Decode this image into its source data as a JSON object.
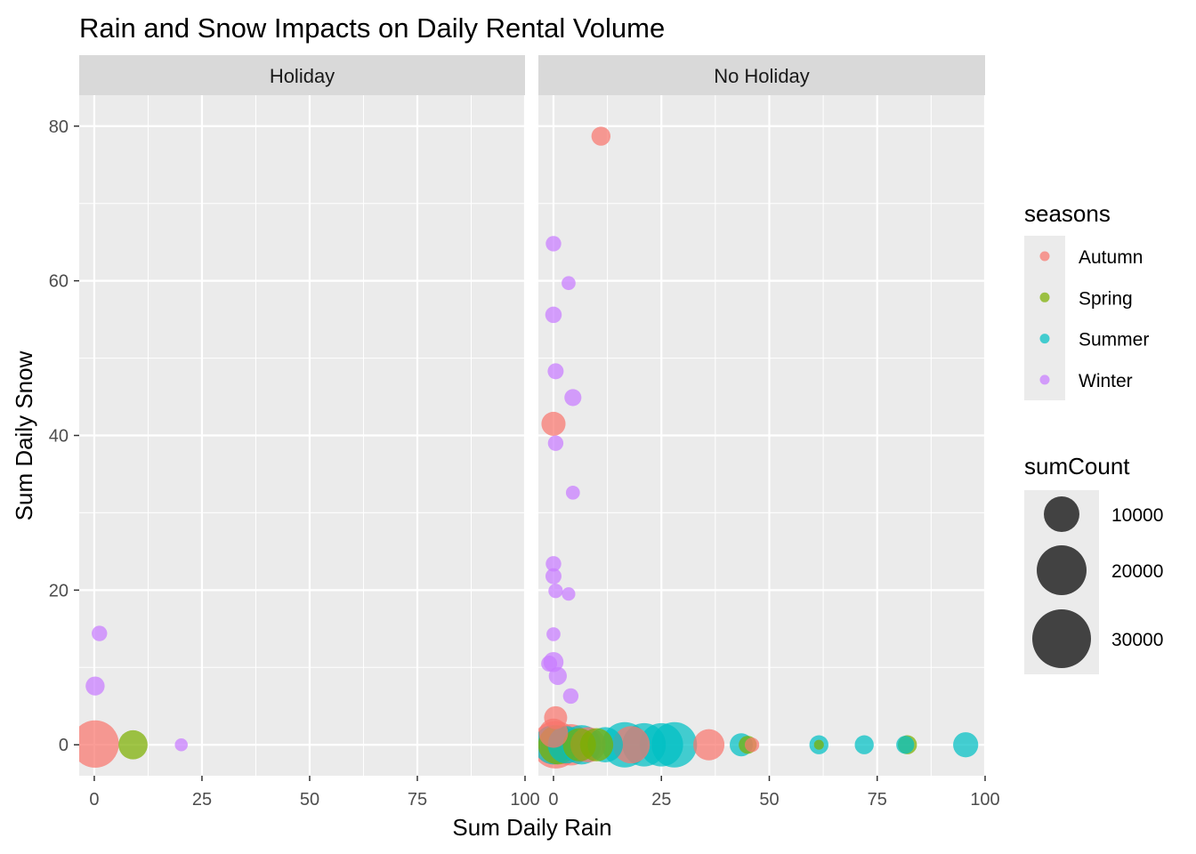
{
  "chart_data": {
    "type": "scatter",
    "title": "Rain and Snow Impacts on Daily Rental Volume",
    "xlabel": "Sum Daily Rain",
    "ylabel": "Sum Daily Snow",
    "xlim": [
      -3.5,
      100
    ],
    "ylim": [
      -4,
      84
    ],
    "x_ticks": [
      0,
      25,
      50,
      75,
      100
    ],
    "x_tick_labels": [
      "0",
      "25",
      "50",
      "75",
      "100"
    ],
    "y_ticks": [
      0,
      20,
      40,
      60,
      80
    ],
    "y_tick_labels": [
      "0",
      "20",
      "40",
      "60",
      "80"
    ],
    "facets": [
      "Holiday",
      "No Holiday"
    ],
    "grid": true,
    "legend_position": "right",
    "color_legend": {
      "title": "seasons",
      "entries": [
        {
          "label": "Autumn",
          "color": "#F8766D"
        },
        {
          "label": "Spring",
          "color": "#7CAE00"
        },
        {
          "label": "Summer",
          "color": "#00BFC4"
        },
        {
          "label": "Winter",
          "color": "#C77CFF"
        }
      ]
    },
    "size_legend": {
      "title": "sumCount",
      "entries": [
        {
          "label": "10000",
          "value": 10000
        },
        {
          "label": "20000",
          "value": 20000
        },
        {
          "label": "30000",
          "value": 30000
        }
      ]
    },
    "points": [
      {
        "facet": "Holiday",
        "season": "Winter",
        "x": 1.2,
        "y": 14.4,
        "count": 6500
      },
      {
        "facet": "Holiday",
        "season": "Winter",
        "x": 0.2,
        "y": 7.6,
        "count": 10000
      },
      {
        "facet": "Holiday",
        "season": "Autumn",
        "x": 0.2,
        "y": 0.1,
        "count": 38000
      },
      {
        "facet": "Holiday",
        "season": "Spring",
        "x": 9.0,
        "y": 0.0,
        "count": 20000
      },
      {
        "facet": "Holiday",
        "season": "Winter",
        "x": 20.2,
        "y": 0.0,
        "count": 4000
      },
      {
        "facet": "No Holiday",
        "season": "Autumn",
        "x": 11.0,
        "y": 78.7,
        "count": 10000
      },
      {
        "facet": "No Holiday",
        "season": "Winter",
        "x": 0.0,
        "y": 64.8,
        "count": 6500
      },
      {
        "facet": "No Holiday",
        "season": "Winter",
        "x": 3.5,
        "y": 59.7,
        "count": 5000
      },
      {
        "facet": "No Holiday",
        "season": "Winter",
        "x": 0.0,
        "y": 55.6,
        "count": 7500
      },
      {
        "facet": "No Holiday",
        "season": "Winter",
        "x": 0.5,
        "y": 48.3,
        "count": 7000
      },
      {
        "facet": "No Holiday",
        "season": "Winter",
        "x": 4.5,
        "y": 44.9,
        "count": 8000
      },
      {
        "facet": "No Holiday",
        "season": "Autumn",
        "x": 0.0,
        "y": 41.5,
        "count": 15000
      },
      {
        "facet": "No Holiday",
        "season": "Winter",
        "x": 0.5,
        "y": 39.0,
        "count": 6500
      },
      {
        "facet": "No Holiday",
        "season": "Winter",
        "x": 4.5,
        "y": 32.6,
        "count": 5000
      },
      {
        "facet": "No Holiday",
        "season": "Winter",
        "x": 0.0,
        "y": 23.4,
        "count": 6500
      },
      {
        "facet": "No Holiday",
        "season": "Winter",
        "x": 0.0,
        "y": 21.8,
        "count": 7000
      },
      {
        "facet": "No Holiday",
        "season": "Winter",
        "x": 0.5,
        "y": 19.9,
        "count": 5500
      },
      {
        "facet": "No Holiday",
        "season": "Winter",
        "x": 3.5,
        "y": 19.5,
        "count": 4500
      },
      {
        "facet": "No Holiday",
        "season": "Winter",
        "x": 0.0,
        "y": 14.3,
        "count": 5000
      },
      {
        "facet": "No Holiday",
        "season": "Winter",
        "x": 0.0,
        "y": 10.7,
        "count": 11000
      },
      {
        "facet": "No Holiday",
        "season": "Winter",
        "x": -1.0,
        "y": 10.5,
        "count": 7000
      },
      {
        "facet": "No Holiday",
        "season": "Winter",
        "x": 1.0,
        "y": 8.9,
        "count": 9000
      },
      {
        "facet": "No Holiday",
        "season": "Winter",
        "x": 4.0,
        "y": 6.3,
        "count": 6500
      },
      {
        "facet": "No Holiday",
        "season": "Autumn",
        "x": 0.5,
        "y": 3.5,
        "count": 14000
      },
      {
        "facet": "No Holiday",
        "season": "Autumn",
        "x": 0.0,
        "y": 1.5,
        "count": 20000
      },
      {
        "facet": "No Holiday",
        "season": "Summer",
        "x": 0.0,
        "y": 0.0,
        "count": 30000
      },
      {
        "facet": "No Holiday",
        "season": "Spring",
        "x": 1.0,
        "y": 0.0,
        "count": 30000
      },
      {
        "facet": "No Holiday",
        "season": "Autumn",
        "x": 0.5,
        "y": 0.0,
        "count": 38000
      },
      {
        "facet": "No Holiday",
        "season": "Summer",
        "x": 3.0,
        "y": 0.0,
        "count": 28000
      },
      {
        "facet": "No Holiday",
        "season": "Autumn",
        "x": 4.0,
        "y": 0.0,
        "count": 32000
      },
      {
        "facet": "No Holiday",
        "season": "Spring",
        "x": 6.0,
        "y": 0.0,
        "count": 24000
      },
      {
        "facet": "No Holiday",
        "season": "Summer",
        "x": 6.5,
        "y": 0.0,
        "count": 30000
      },
      {
        "facet": "No Holiday",
        "season": "Autumn",
        "x": 8.0,
        "y": 0.0,
        "count": 26000
      },
      {
        "facet": "No Holiday",
        "season": "Spring",
        "x": 10.0,
        "y": 0.0,
        "count": 24000
      },
      {
        "facet": "No Holiday",
        "season": "Summer",
        "x": 12.0,
        "y": 0.0,
        "count": 26000
      },
      {
        "facet": "No Holiday",
        "season": "Summer",
        "x": 16.5,
        "y": 0.0,
        "count": 36000
      },
      {
        "facet": "No Holiday",
        "season": "Autumn",
        "x": 18.0,
        "y": 0.0,
        "count": 28000
      },
      {
        "facet": "No Holiday",
        "season": "Summer",
        "x": 21.0,
        "y": 0.0,
        "count": 34000
      },
      {
        "facet": "No Holiday",
        "season": "Summer",
        "x": 25.0,
        "y": 0.0,
        "count": 34000
      },
      {
        "facet": "No Holiday",
        "season": "Summer",
        "x": 28.0,
        "y": 0.0,
        "count": 36000
      },
      {
        "facet": "No Holiday",
        "season": "Autumn",
        "x": 36.0,
        "y": 0.0,
        "count": 22000
      },
      {
        "facet": "No Holiday",
        "season": "Summer",
        "x": 43.5,
        "y": 0.0,
        "count": 14000
      },
      {
        "facet": "No Holiday",
        "season": "Spring",
        "x": 45.0,
        "y": 0.0,
        "count": 9000
      },
      {
        "facet": "No Holiday",
        "season": "Autumn",
        "x": 46.0,
        "y": 0.0,
        "count": 5500
      },
      {
        "facet": "No Holiday",
        "season": "Summer",
        "x": 61.5,
        "y": 0.0,
        "count": 10000
      },
      {
        "facet": "No Holiday",
        "season": "Spring",
        "x": 61.5,
        "y": 0.0,
        "count": 1000
      },
      {
        "facet": "No Holiday",
        "season": "Summer",
        "x": 72.0,
        "y": 0.0,
        "count": 10000
      },
      {
        "facet": "No Holiday",
        "season": "Spring",
        "x": 82.0,
        "y": 0.0,
        "count": 10000
      },
      {
        "facet": "No Holiday",
        "season": "Summer",
        "x": 81.5,
        "y": 0.0,
        "count": 9000
      },
      {
        "facet": "No Holiday",
        "season": "Summer",
        "x": 95.5,
        "y": 0.0,
        "count": 16000
      }
    ]
  }
}
